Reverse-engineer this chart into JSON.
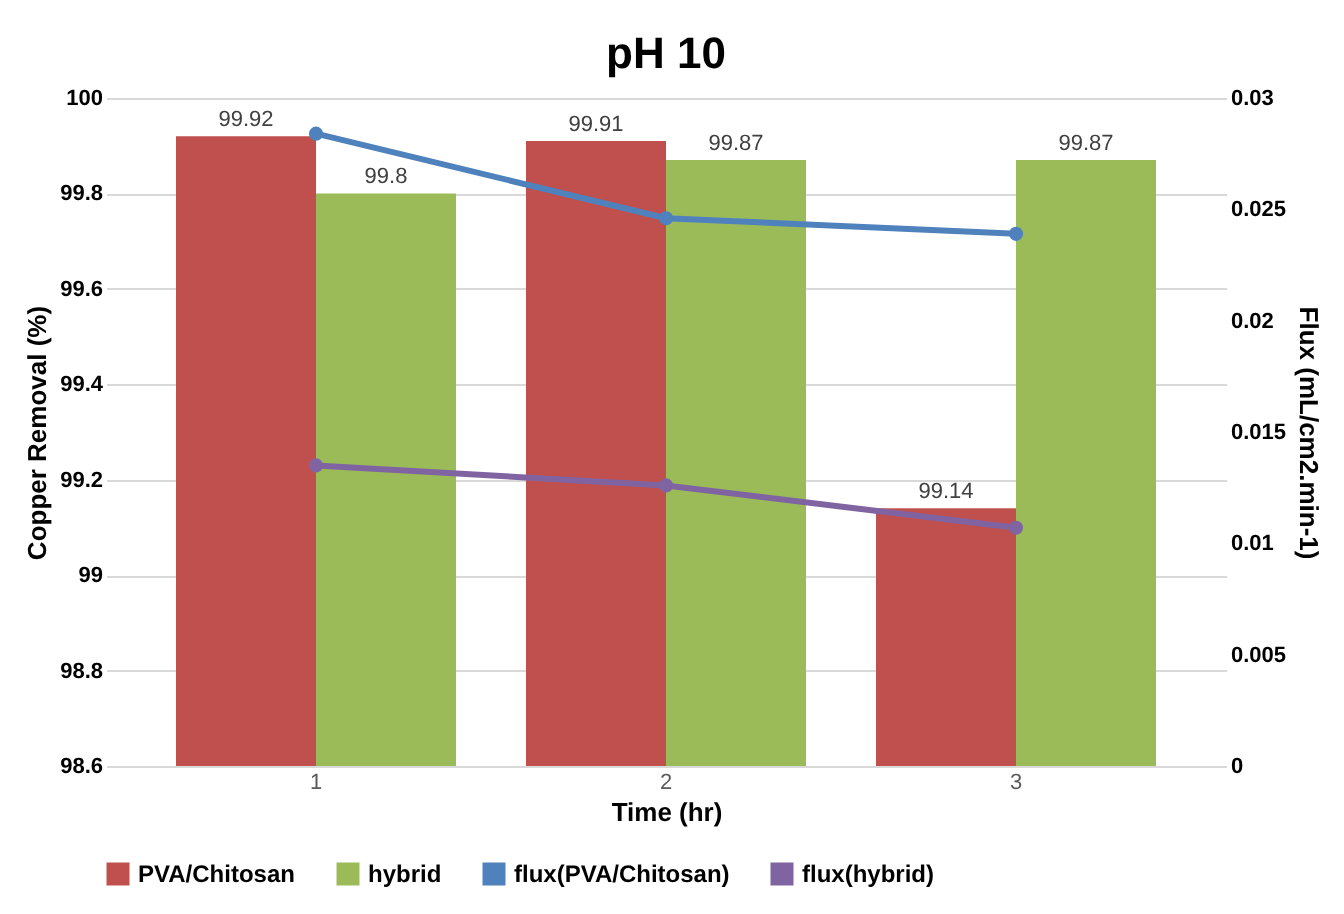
{
  "chart_data": {
    "type": "bar",
    "title": "pH 10",
    "xlabel": "Time (hr)",
    "ylabel": "Copper Removal (%)",
    "y2label": "Flux (mL/cm2.min-1)",
    "categories": [
      "1",
      "2",
      "3"
    ],
    "series": [
      {
        "name": "PVA/Chitosan",
        "color": "#c0504d",
        "values": [
          99.92,
          99.91,
          99.14
        ],
        "value_labels": [
          "99.92",
          "99.91",
          "99.14"
        ]
      },
      {
        "name": "hybrid",
        "color": "#9bbb59",
        "values": [
          99.8,
          99.87,
          99.87
        ],
        "value_labels": [
          "99.8",
          "99.87",
          "99.87"
        ]
      },
      {
        "name": "flux(PVA/Chitosan)",
        "color": "#4f81bd",
        "type": "line",
        "axis": "y2",
        "values": [
          0.0284,
          0.0246,
          0.0239
        ]
      },
      {
        "name": "flux(hybrid)",
        "color": "#8064a2",
        "type": "line",
        "axis": "y2",
        "values": [
          0.0135,
          0.0126,
          0.0107
        ]
      }
    ],
    "ylim": [
      98.6,
      100
    ],
    "yticks": [
      98.6,
      98.8,
      99,
      99.2,
      99.4,
      99.6,
      99.8,
      100
    ],
    "y2lim": [
      0,
      0.03
    ],
    "y2ticks": [
      0,
      0.005,
      0.01,
      0.015,
      0.02,
      0.025,
      0.03
    ],
    "grid": "y",
    "legend": "bottom",
    "marker": "circle"
  }
}
